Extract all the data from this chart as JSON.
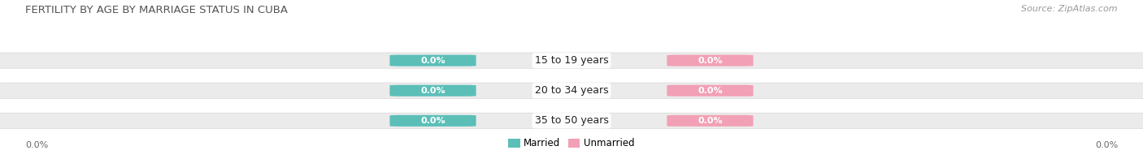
{
  "title": "FERTILITY BY AGE BY MARRIAGE STATUS IN CUBA",
  "source": "Source: ZipAtlas.com",
  "categories": [
    "15 to 19 years",
    "20 to 34 years",
    "35 to 50 years"
  ],
  "married_values": [
    0.0,
    0.0,
    0.0
  ],
  "unmarried_values": [
    0.0,
    0.0,
    0.0
  ],
  "married_color": "#5BBFB8",
  "unmarried_color": "#F2A0B5",
  "bar_bg_color": "#EBEBEB",
  "title_fontsize": 9.5,
  "source_fontsize": 8,
  "label_fontsize": 9,
  "value_fontsize": 8,
  "axis_label": "0.0%",
  "background_color": "#FFFFFF",
  "legend_married": "Married",
  "legend_unmarried": "Unmarried"
}
